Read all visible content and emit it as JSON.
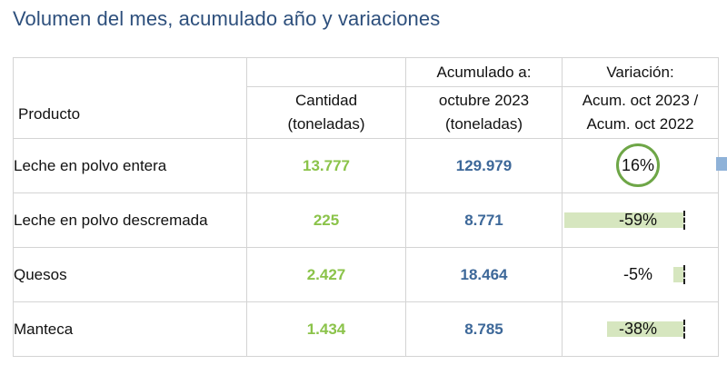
{
  "title": "Volumen del mes, acumulado año y variaciones",
  "headers": {
    "acumulado_top": "Acumulado a:",
    "variacion_top": "Variación:",
    "producto": "Producto",
    "cantidad_line1": "Cantidad",
    "cantidad_line2": "(toneladas)",
    "acumulado_line1": "octubre 2023",
    "acumulado_line2": "(toneladas)",
    "variacion_line1": "Acum. oct 2023 /",
    "variacion_line2": "Acum. oct 2022"
  },
  "rows": [
    {
      "producto": "Leche en polvo entera",
      "cantidad": "13.777",
      "acumulado": "129.979",
      "variacion": "16%",
      "variacion_value": 16,
      "highlighted": true
    },
    {
      "producto": "Leche en polvo descremada",
      "cantidad": "225",
      "acumulado": "8.771",
      "variacion": "-59%",
      "variacion_value": -59,
      "highlighted": false
    },
    {
      "producto": "Quesos",
      "cantidad": "2.427",
      "acumulado": "18.464",
      "variacion": "-5%",
      "variacion_value": -5,
      "highlighted": false
    },
    {
      "producto": "Manteca",
      "cantidad": "1.434",
      "acumulado": "8.785",
      "variacion": "-38%",
      "variacion_value": -38,
      "highlighted": false
    }
  ],
  "colors": {
    "title": "#2d4f7c",
    "cantidad": "#8bc34a",
    "acumulado": "#3d6899",
    "bar_negative": "#d6e6bf",
    "bar_positive": "#8fb2d8",
    "highlight_ring": "#6ea647"
  }
}
